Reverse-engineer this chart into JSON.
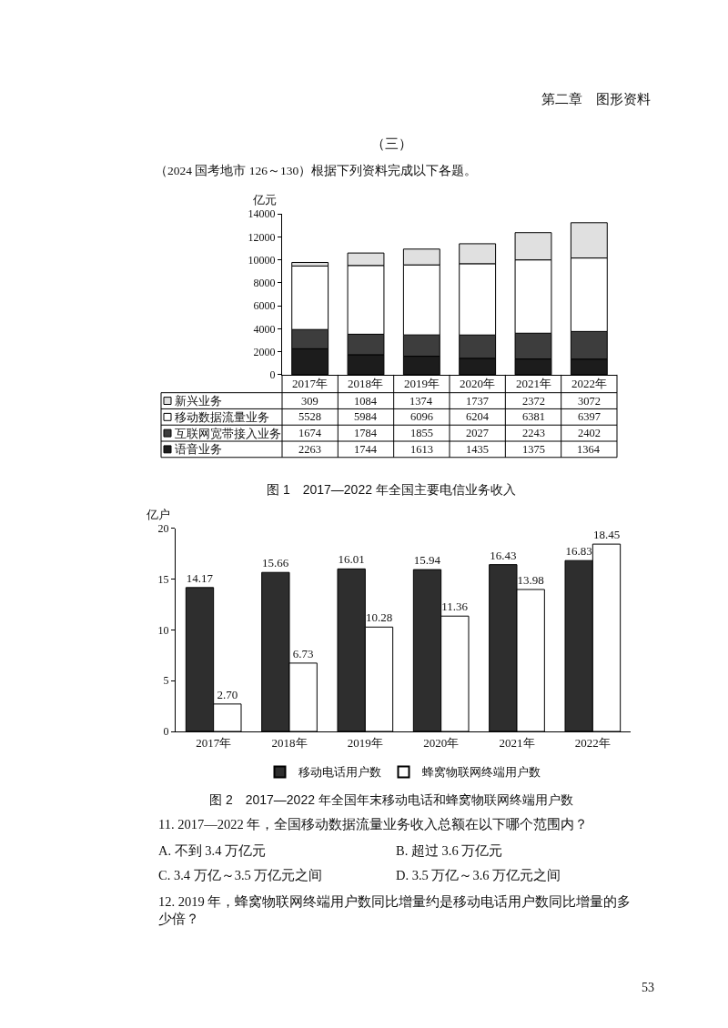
{
  "chart_data": [
    {
      "type": "bar",
      "stacked": true,
      "title": "图 1　2017—2022 年全国主要电信业务收入",
      "ylabel": "亿元",
      "categories": [
        "2017年",
        "2018年",
        "2019年",
        "2020年",
        "2021年",
        "2022年"
      ],
      "series": [
        {
          "name": "语音业务",
          "color": "#1c1c1c",
          "values": [
            2263,
            1744,
            1613,
            1435,
            1375,
            1364
          ]
        },
        {
          "name": "互联网宽带接入业务",
          "color": "#3d3d3d",
          "values": [
            1674,
            1784,
            1855,
            2027,
            2243,
            2402
          ]
        },
        {
          "name": "移动数据流量业务",
          "color": "#ffffff",
          "values": [
            5528,
            5984,
            6096,
            6204,
            6381,
            6397
          ]
        },
        {
          "name": "新兴业务",
          "color": "#e0e0e0",
          "values": [
            309,
            1084,
            1374,
            1737,
            2372,
            3072
          ]
        }
      ],
      "ylim": [
        0,
        14000
      ],
      "yticks": [
        0,
        2000,
        4000,
        6000,
        8000,
        10000,
        12000,
        14000
      ],
      "data_labels": true,
      "legend": "bottom left",
      "annotations": [
        "第二章　图形资料",
        "（三）",
        "（2024 国考地市 126～130）根据下列资料完成以下各题。"
      ]
    },
    {
      "type": "bar",
      "title": "图 2　2017—2022 年全国年末移动电话和蜂窝物联网终端用户数",
      "ylabel": "亿户",
      "categories": [
        "2017年",
        "2018年",
        "2019年",
        "2020年",
        "2021年",
        "2022年"
      ],
      "series": [
        {
          "name": "移动电话用户数",
          "color": "#2e2e2e",
          "values": [
            14.17,
            15.66,
            16.01,
            15.94,
            16.43,
            16.83
          ],
          "value_labels": [
            "14.17",
            "15.66",
            "16.01",
            "15.94",
            "16.43",
            "16.83"
          ]
        },
        {
          "name": "蜂窝物联网终端用户数",
          "color": "#ffffff",
          "values": [
            2.7,
            6.73,
            10.28,
            11.36,
            13.98,
            18.45
          ],
          "value_labels": [
            "2.70",
            "6.73",
            "10.28",
            "11.36",
            "13.98",
            "18.45"
          ]
        }
      ],
      "ylim": [
        0,
        20
      ],
      "yticks": [
        0,
        5,
        10,
        15,
        20
      ],
      "legend": "bottom",
      "annotations": [
        "11. 2017—2022 年，全国移动数据流量业务收入总额在以下哪个范围内？",
        "A. 不到 3.4 万亿元",
        "B. 超过 3.6 万亿元",
        "C. 3.4 万亿～3.5 万亿元之间",
        "D. 3.5 万亿～3.6 万亿元之间",
        "12. 2019 年，蜂窝物联网终端用户数同比增量约是移动电话用户数同比增量的多少倍？",
        "53"
      ]
    }
  ]
}
